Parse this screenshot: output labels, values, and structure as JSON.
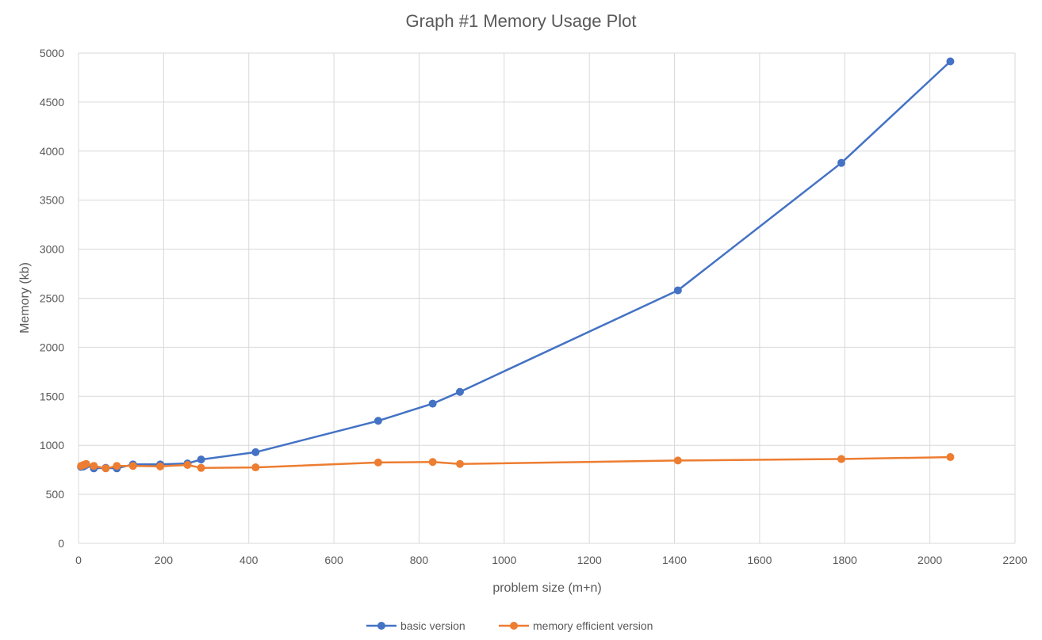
{
  "chart_data": {
    "type": "line",
    "title": "Graph #1 Memory Usage Plot",
    "xlabel": "problem size (m+n)",
    "ylabel": "Memory (kb)",
    "xlim": [
      0,
      2200
    ],
    "ylim": [
      0,
      5000
    ],
    "xticks": [
      0,
      200,
      400,
      600,
      800,
      1000,
      1200,
      1400,
      1600,
      1800,
      2000,
      2200
    ],
    "yticks": [
      0,
      500,
      1000,
      1500,
      2000,
      2500,
      3000,
      3500,
      4000,
      4500,
      5000
    ],
    "grid": true,
    "legend_position": "bottom",
    "series": [
      {
        "name": "basic version",
        "color": "#4472c4",
        "points": [
          [
            6,
            780
          ],
          [
            12,
            785
          ],
          [
            18,
            800
          ],
          [
            36,
            765
          ],
          [
            64,
            770
          ],
          [
            90,
            765
          ],
          [
            128,
            805
          ],
          [
            192,
            805
          ],
          [
            256,
            815
          ],
          [
            288,
            855
          ],
          [
            416,
            930
          ],
          [
            704,
            1250
          ],
          [
            832,
            1425
          ],
          [
            896,
            1545
          ],
          [
            1408,
            2580
          ],
          [
            1792,
            3880
          ],
          [
            2048,
            4915
          ]
        ]
      },
      {
        "name": "memory efficient version",
        "color": "#ed7d31",
        "points": [
          [
            6,
            790
          ],
          [
            12,
            800
          ],
          [
            18,
            810
          ],
          [
            36,
            790
          ],
          [
            64,
            765
          ],
          [
            90,
            790
          ],
          [
            128,
            790
          ],
          [
            192,
            785
          ],
          [
            256,
            800
          ],
          [
            288,
            770
          ],
          [
            416,
            775
          ],
          [
            704,
            825
          ],
          [
            832,
            830
          ],
          [
            896,
            810
          ],
          [
            1408,
            845
          ],
          [
            1792,
            860
          ],
          [
            2048,
            880
          ]
        ]
      }
    ]
  }
}
